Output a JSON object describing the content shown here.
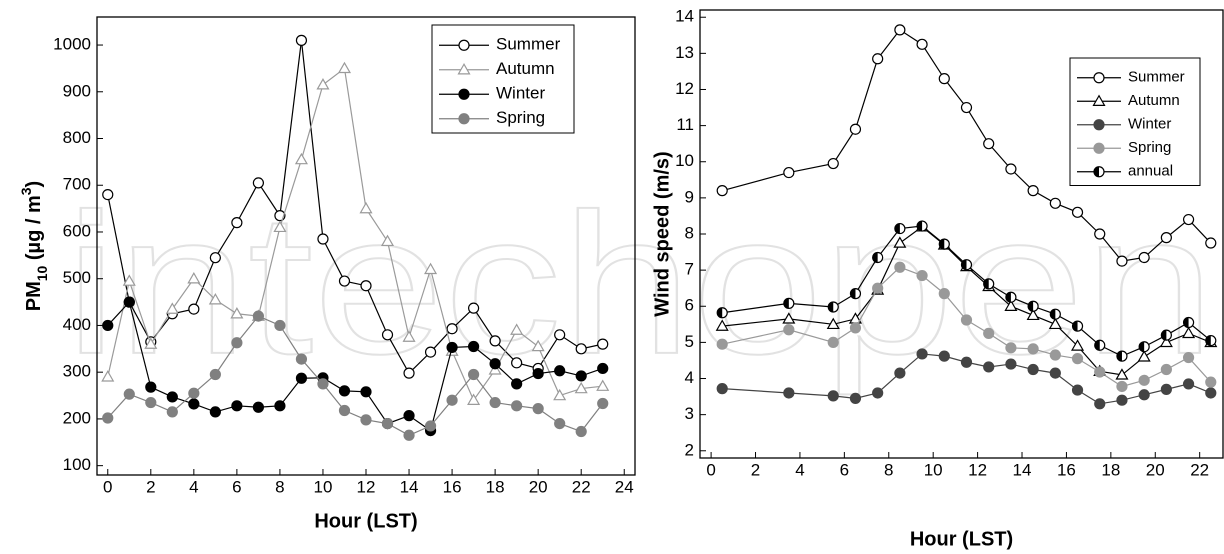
{
  "watermark": "intechopen",
  "chart_data": [
    {
      "type": "line",
      "xlabel": "Hour (LST)",
      "ylabel": [
        "PM",
        "10",
        " (µg / m",
        "3",
        ")"
      ],
      "x": [
        0,
        1,
        2,
        3,
        4,
        5,
        6,
        7,
        8,
        9,
        10,
        11,
        12,
        13,
        14,
        15,
        16,
        17,
        18,
        19,
        20,
        21,
        22,
        23
      ],
      "xlim": [
        -0.5,
        24.5
      ],
      "xticks": [
        0,
        2,
        4,
        6,
        8,
        10,
        12,
        14,
        16,
        18,
        20,
        22,
        24
      ],
      "ylim": [
        80,
        1060
      ],
      "yticks": [
        100,
        200,
        300,
        400,
        500,
        600,
        700,
        800,
        900,
        1000
      ],
      "legend": "upper right",
      "series": [
        {
          "name": "Summer",
          "color": "#000000",
          "marker": "circle-open",
          "values": [
            680,
            450,
            365,
            425,
            435,
            545,
            620,
            705,
            635,
            1010,
            585,
            495,
            485,
            380,
            298,
            343,
            393,
            437,
            367,
            320,
            308,
            380,
            350,
            360
          ]
        },
        {
          "name": "Autumn",
          "color": "#9a9a9a",
          "marker": "triangle-open",
          "values": [
            290,
            495,
            360,
            435,
            500,
            455,
            425,
            420,
            610,
            755,
            915,
            950,
            650,
            580,
            375,
            520,
            345,
            240,
            305,
            390,
            355,
            250,
            265,
            270
          ]
        },
        {
          "name": "Winter",
          "color": "#000000",
          "marker": "circle-filled",
          "values": [
            400,
            450,
            268,
            247,
            232,
            215,
            228,
            225,
            228,
            287,
            288,
            260,
            258,
            190,
            207,
            175,
            353,
            355,
            318,
            275,
            297,
            303,
            292,
            308
          ]
        },
        {
          "name": "Spring",
          "color": "#808080",
          "marker": "circle-filled",
          "values": [
            202,
            253,
            235,
            215,
            255,
            295,
            363,
            420,
            400,
            328,
            275,
            218,
            198,
            190,
            165,
            185,
            240,
            295,
            235,
            228,
            222,
            190,
            173,
            233
          ]
        }
      ]
    },
    {
      "type": "line",
      "xlabel": "Hour (LST)",
      "ylabel": "Wind speed (m/s)",
      "x": [
        0.5,
        3.5,
        5.5,
        6.5,
        7.5,
        8.5,
        9.5,
        10.5,
        11.5,
        12.5,
        13.5,
        14.5,
        15.5,
        16.5,
        17.5,
        18.5,
        19.5,
        20.5,
        21.5,
        22.5
      ],
      "xlim": [
        -0.5,
        23.05
      ],
      "xticks": [
        0,
        2,
        4,
        6,
        8,
        10,
        12,
        14,
        16,
        18,
        20,
        22
      ],
      "ylim": [
        1.8,
        14.2
      ],
      "yticks": [
        2,
        3,
        4,
        5,
        6,
        7,
        8,
        9,
        10,
        11,
        12,
        13,
        14
      ],
      "legend": "upper right",
      "series": [
        {
          "name": "Summer",
          "color": "#000000",
          "marker": "circle-open",
          "values": [
            9.2,
            9.7,
            9.95,
            10.9,
            12.85,
            13.65,
            13.25,
            12.3,
            11.5,
            10.5,
            9.8,
            9.2,
            8.85,
            8.6,
            8.0,
            7.25,
            7.35,
            7.9,
            8.4,
            7.75
          ]
        },
        {
          "name": "Autumn",
          "color": "#000000",
          "marker": "triangle-open",
          "values": [
            5.45,
            5.65,
            5.5,
            5.65,
            6.45,
            7.75,
            8.2,
            7.7,
            7.1,
            6.55,
            6.0,
            5.75,
            5.5,
            4.9,
            4.2,
            4.1,
            4.6,
            5.0,
            5.25,
            5.0
          ]
        },
        {
          "name": "Winter",
          "color": "#444444",
          "marker": "circle-filled",
          "values": [
            3.72,
            3.6,
            3.52,
            3.45,
            3.6,
            4.15,
            4.68,
            4.62,
            4.45,
            4.32,
            4.4,
            4.25,
            4.15,
            3.68,
            3.3,
            3.4,
            3.55,
            3.7,
            3.85,
            3.6
          ]
        },
        {
          "name": "Spring",
          "color": "#999999",
          "marker": "circle-filled",
          "values": [
            4.95,
            5.35,
            5.0,
            5.4,
            6.5,
            7.08,
            6.85,
            6.35,
            5.62,
            5.25,
            4.85,
            4.82,
            4.65,
            4.55,
            4.18,
            3.78,
            3.95,
            4.25,
            4.58,
            3.9
          ]
        },
        {
          "name": "annual",
          "color": "#000000",
          "marker": "circle-half",
          "values": [
            5.82,
            6.08,
            5.98,
            6.35,
            7.35,
            8.15,
            8.22,
            7.72,
            7.15,
            6.62,
            6.25,
            6.0,
            5.78,
            5.45,
            4.92,
            4.62,
            4.88,
            5.2,
            5.55,
            5.05
          ]
        }
      ]
    }
  ]
}
